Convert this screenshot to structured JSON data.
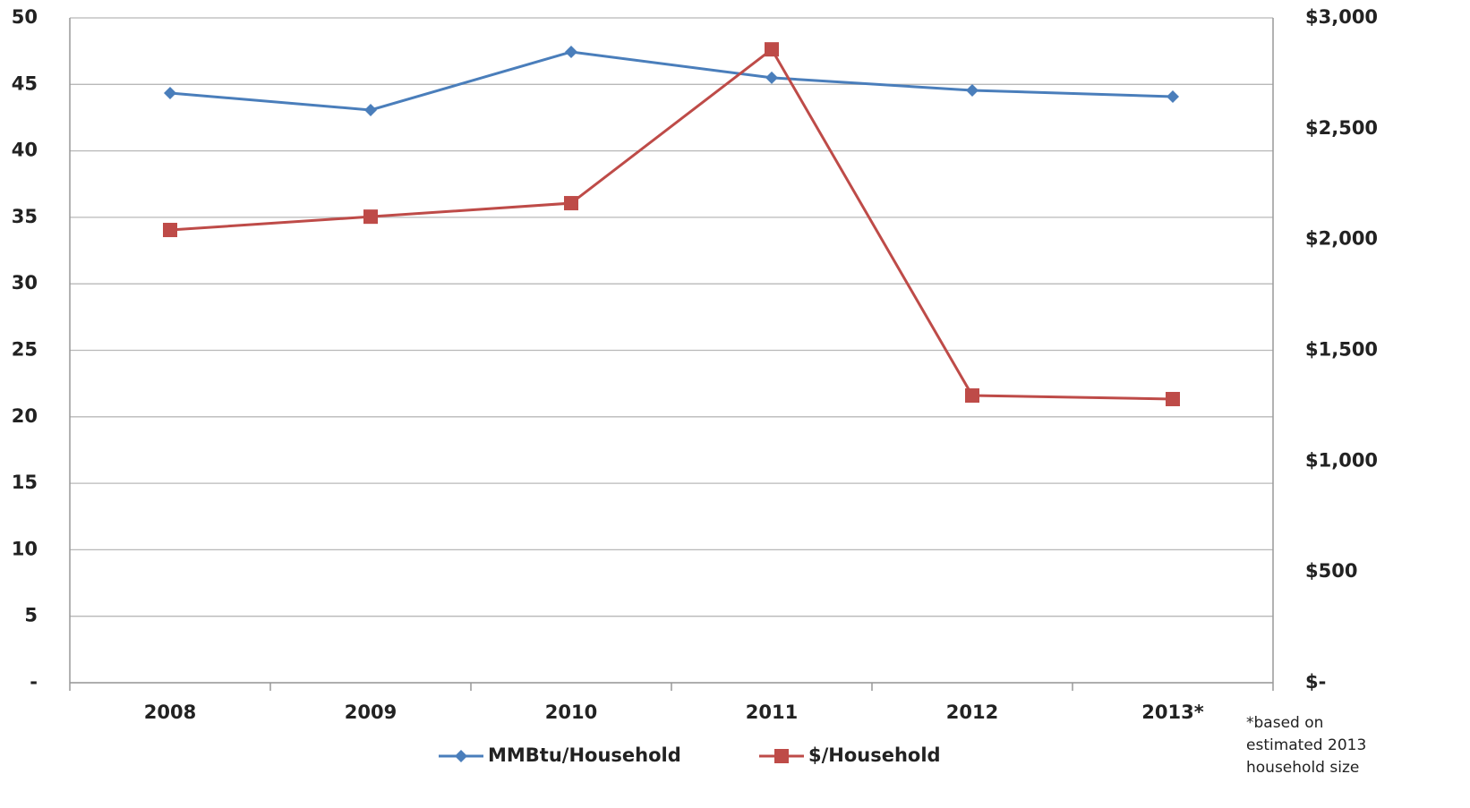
{
  "chart_data": {
    "type": "line",
    "categories": [
      "2008",
      "2009",
      "2010",
      "2011",
      "2012",
      "2013*"
    ],
    "series": [
      {
        "name": "MMBtu/Household",
        "color": "#4a7ebb",
        "marker": "diamond",
        "values": [
          44.35,
          43.07,
          47.44,
          45.5,
          44.55,
          44.08
        ]
      },
      {
        "name": "$/Household",
        "color": "#be4b48",
        "marker": "square",
        "axis": "y2",
        "values": [
          2043,
          2103,
          2164,
          2858,
          1296,
          1280
        ]
      }
    ],
    "ylim": [
      0,
      50
    ],
    "yticks": [
      {
        "value": 0,
        "label": "-"
      },
      5,
      10,
      15,
      20,
      25,
      30,
      35,
      40,
      45,
      50
    ],
    "y2lim": [
      0,
      3000
    ],
    "y2ticks": [
      {
        "value": 0,
        "label": "$-"
      },
      {
        "value": 500,
        "label": "$500"
      },
      {
        "value": 1000,
        "label": "$1,000"
      },
      {
        "value": 1500,
        "label": "$1,500"
      },
      {
        "value": 2000,
        "label": "$2,000"
      },
      {
        "value": 2500,
        "label": "$2,500"
      },
      {
        "value": 3000,
        "label": "$3,000"
      }
    ],
    "grid": true,
    "legend": "bottom",
    "footnote": [
      "*based on",
      "estimated 2013",
      "household size"
    ]
  }
}
